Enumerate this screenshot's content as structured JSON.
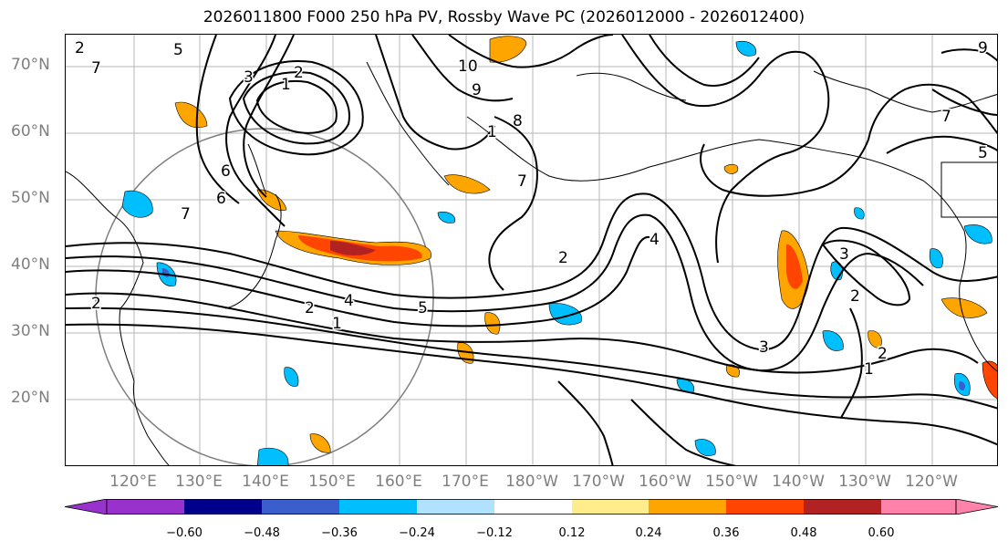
{
  "title": "2026011800 F000 250 hPa PV, Rossby Wave PC (2026012000 - 2026012400)",
  "lat_labels": [
    "70°N",
    "60°N",
    "50°N",
    "40°N",
    "30°N",
    "20°N"
  ],
  "lon_labels": [
    "120°E",
    "130°E",
    "140°E",
    "150°E",
    "160°E",
    "170°E",
    "180°W",
    "170°W",
    "160°W",
    "150°W",
    "140°W",
    "130°W",
    "120°W"
  ],
  "contour_labels": [
    "7",
    "5",
    "3",
    "2",
    "1",
    "10",
    "9",
    "8",
    "6",
    "7",
    "2",
    "4",
    "1",
    "7",
    "2",
    "1",
    "2",
    "4",
    "5",
    "6",
    "2",
    "3",
    "2",
    "3",
    "1",
    "2",
    "9",
    "7",
    "5"
  ],
  "colorbar": {
    "ticks": [
      "−0.60",
      "−0.48",
      "−0.36",
      "−0.24",
      "−0.12",
      "0.12",
      "0.24",
      "0.36",
      "0.48",
      "0.60"
    ],
    "colors": [
      "#9932cc",
      "#00008b",
      "#3a5fcd",
      "#00bfff",
      "#b0e2ff",
      "#ffffff",
      "#ffec8b",
      "#ffa500",
      "#ff4500",
      "#b22222",
      "#ff82ab"
    ]
  }
}
